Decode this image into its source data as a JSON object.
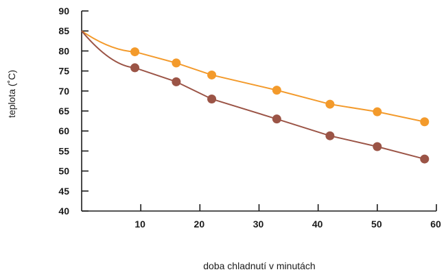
{
  "chart_data": {
    "type": "line",
    "title": "",
    "xlabel": "doba chladnutí v minutách",
    "ylabel": "teplota (˚C)",
    "xlim": [
      0,
      60
    ],
    "ylim": [
      40,
      90
    ],
    "xticks": [
      10,
      20,
      30,
      40,
      50,
      60
    ],
    "yticks": [
      40,
      45,
      50,
      55,
      60,
      65,
      70,
      75,
      80,
      85,
      90
    ],
    "grid": false,
    "series": [
      {
        "color": "#f39a2b",
        "start": [
          0,
          85
        ],
        "x": [
          9,
          16,
          22,
          33,
          42,
          50,
          58
        ],
        "y": [
          79.8,
          77.0,
          74.0,
          70.2,
          66.7,
          64.8,
          62.3
        ]
      },
      {
        "color": "#9b5446",
        "start": [
          0,
          85
        ],
        "x": [
          9,
          16,
          22,
          33,
          42,
          50,
          58
        ],
        "y": [
          75.8,
          72.3,
          68.0,
          63.0,
          58.8,
          56.1,
          53.0
        ]
      }
    ]
  }
}
